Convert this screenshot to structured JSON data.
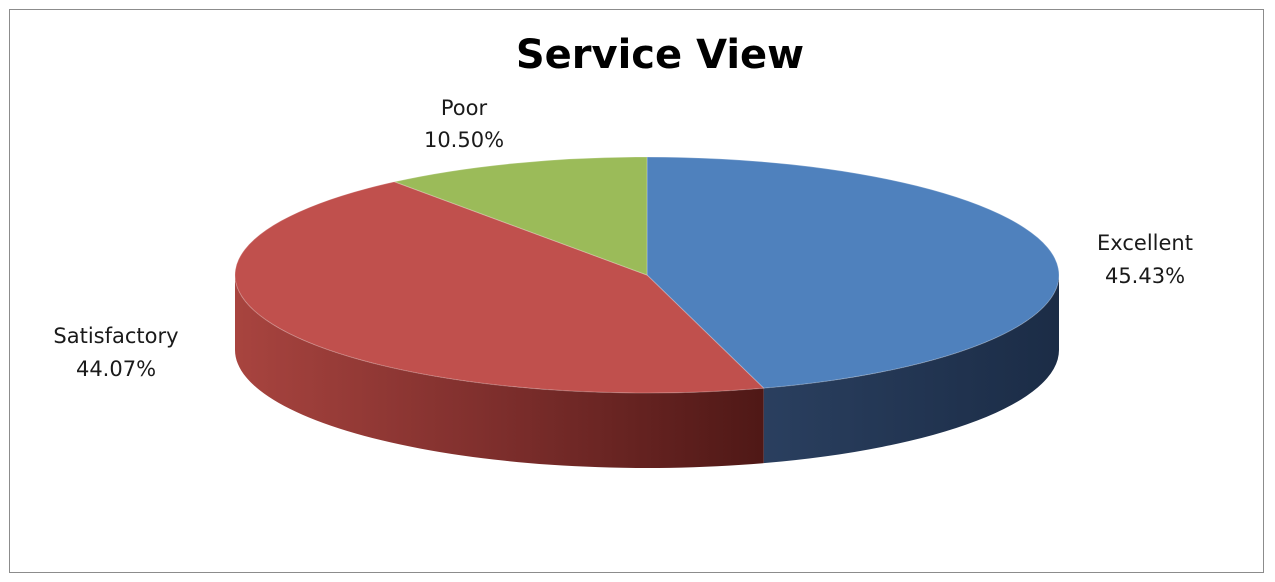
{
  "chart_data": {
    "type": "pie",
    "style": "3d",
    "title": "Service View",
    "categories": [
      "Excellent",
      "Satisfactory",
      "Poor"
    ],
    "values": [
      45.43,
      44.07,
      10.5
    ],
    "labels": [
      {
        "name": "Excellent",
        "value": "45.43%"
      },
      {
        "name": "Satisfactory",
        "value": "44.07%"
      },
      {
        "name": "Poor",
        "value": "10.50%"
      }
    ],
    "colors": [
      "#4f81bd",
      "#c0504d",
      "#9bbb59"
    ],
    "legend": "none"
  }
}
